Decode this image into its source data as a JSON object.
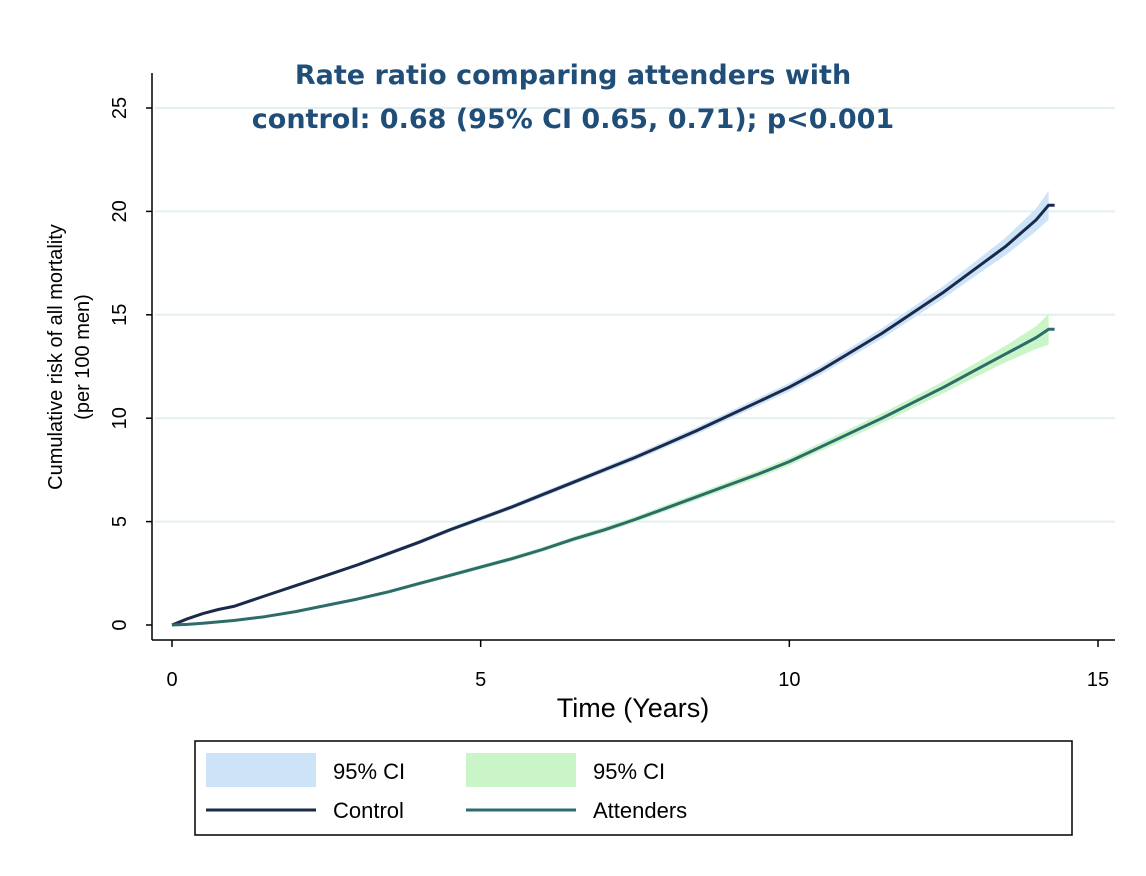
{
  "chart_data": {
    "type": "line",
    "title_lines": [
      "Rate ratio comparing attenders with",
      "control: 0.68 (95% CI 0.65, 0.71); p<0.001"
    ],
    "xlabel": "Time (Years)",
    "ylabel_lines": [
      "Cumulative risk of all mortality",
      "(per 100 men)"
    ],
    "xlim": [
      0,
      15
    ],
    "ylim": [
      0,
      25
    ],
    "x_ticks": [
      "0",
      "5",
      "10",
      "15"
    ],
    "y_ticks": [
      "0",
      "5",
      "10",
      "15",
      "20",
      "25"
    ],
    "grid": true,
    "legend_position": "bottom",
    "series": [
      {
        "name": "Control",
        "color": "#1b2a4a",
        "ci_name": "95% CI",
        "ci_color": "#cde3f8",
        "x": [
          0,
          0.25,
          0.5,
          0.75,
          1,
          1.5,
          2,
          2.5,
          3,
          3.5,
          4,
          4.5,
          5,
          5.5,
          6,
          6.5,
          7,
          7.5,
          8,
          8.5,
          9,
          9.5,
          10,
          10.5,
          11,
          11.5,
          12,
          12.5,
          13,
          13.5,
          14,
          14.2
        ],
        "y": [
          0,
          0.3,
          0.55,
          0.75,
          0.9,
          1.4,
          1.9,
          2.4,
          2.9,
          3.45,
          4.0,
          4.6,
          5.15,
          5.7,
          6.3,
          6.9,
          7.5,
          8.1,
          8.75,
          9.4,
          10.1,
          10.8,
          11.5,
          12.3,
          13.2,
          14.1,
          15.1,
          16.1,
          17.2,
          18.3,
          19.6,
          20.3
        ],
        "ci_halfwidth": [
          0,
          0.02,
          0.03,
          0.04,
          0.05,
          0.06,
          0.07,
          0.08,
          0.09,
          0.1,
          0.1,
          0.11,
          0.12,
          0.12,
          0.13,
          0.13,
          0.14,
          0.15,
          0.16,
          0.17,
          0.18,
          0.19,
          0.2,
          0.21,
          0.23,
          0.25,
          0.27,
          0.3,
          0.35,
          0.42,
          0.55,
          0.7
        ]
      },
      {
        "name": "Attenders",
        "color": "#2e6b6b",
        "ci_name": "95% CI",
        "ci_color": "#c9f5c9",
        "x": [
          0,
          0.25,
          0.5,
          0.75,
          1,
          1.5,
          2,
          2.5,
          3,
          3.5,
          4,
          4.5,
          5,
          5.5,
          6,
          6.5,
          7,
          7.5,
          8,
          8.5,
          9,
          9.5,
          10,
          10.5,
          11,
          11.5,
          12,
          12.5,
          13,
          13.5,
          14,
          14.2
        ],
        "y": [
          0,
          0.03,
          0.08,
          0.15,
          0.22,
          0.4,
          0.65,
          0.95,
          1.25,
          1.6,
          2.0,
          2.4,
          2.8,
          3.2,
          3.65,
          4.15,
          4.6,
          5.1,
          5.65,
          6.2,
          6.75,
          7.3,
          7.9,
          8.6,
          9.3,
          10.0,
          10.75,
          11.5,
          12.3,
          13.1,
          13.9,
          14.3
        ],
        "ci_halfwidth": [
          0,
          0.01,
          0.02,
          0.02,
          0.03,
          0.04,
          0.05,
          0.06,
          0.07,
          0.08,
          0.09,
          0.1,
          0.1,
          0.11,
          0.11,
          0.12,
          0.13,
          0.14,
          0.15,
          0.16,
          0.17,
          0.18,
          0.19,
          0.2,
          0.22,
          0.24,
          0.26,
          0.29,
          0.33,
          0.4,
          0.55,
          0.75
        ]
      }
    ],
    "legend": [
      {
        "label": "95% CI",
        "kind": "band",
        "color": "#cde3f8"
      },
      {
        "label": "95% CI",
        "kind": "band",
        "color": "#c9f5c9"
      },
      {
        "label": "Control",
        "kind": "line",
        "color": "#1b2a4a"
      },
      {
        "label": "Attenders",
        "kind": "line",
        "color": "#2e6b6b"
      }
    ]
  }
}
